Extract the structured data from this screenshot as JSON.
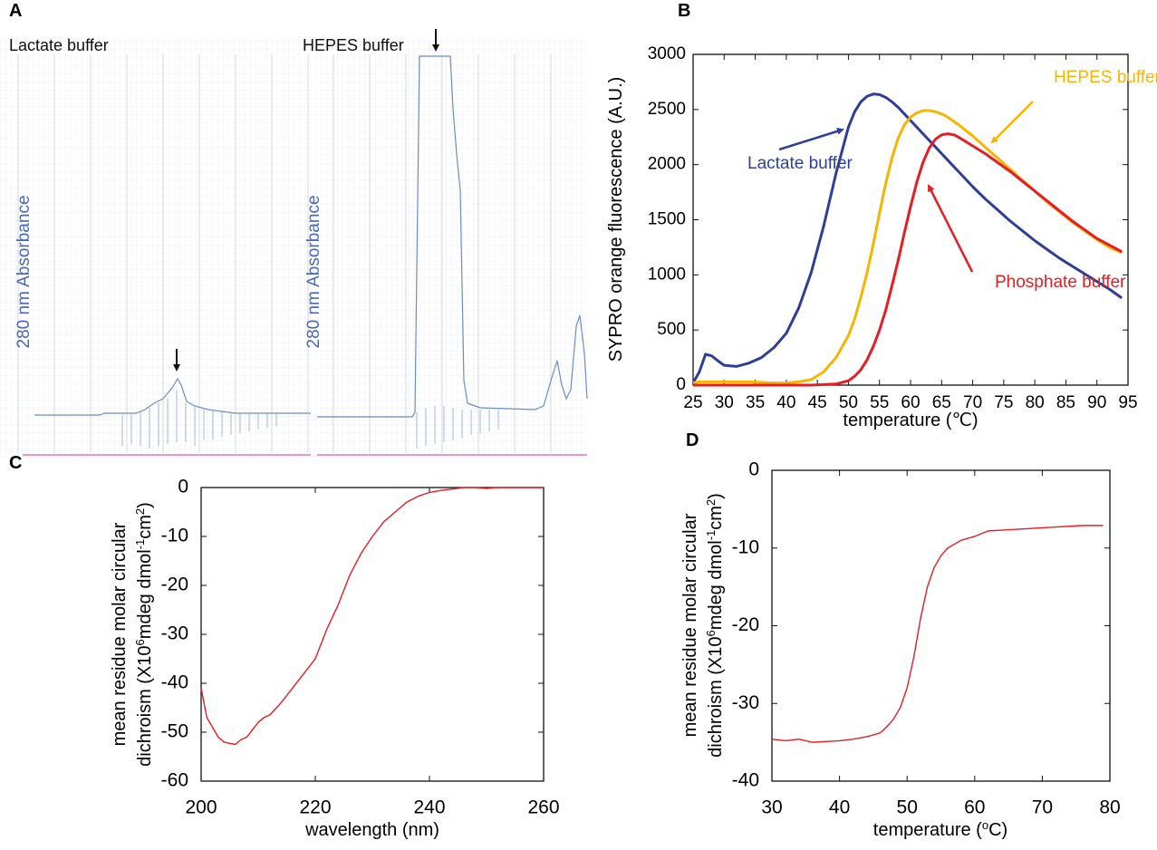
{
  "panel_a": {
    "label": "A",
    "left_title": "Lactate buffer",
    "right_title": "HEPES buffer",
    "left_y_label": "280 nm Absorbance",
    "right_y_label": "280 nm Absorbance"
  },
  "chart_data": [
    {
      "type": "line",
      "label": "B",
      "y_label": "SYPRO orange fluorescence (A.U.)",
      "x_label": "temperature (℃)",
      "xlim": [
        25,
        95
      ],
      "xticks": [
        25,
        30,
        35,
        40,
        45,
        50,
        55,
        60,
        65,
        70,
        75,
        80,
        85,
        90,
        95
      ],
      "ylim": [
        0,
        3000
      ],
      "yticks": [
        0,
        500,
        1000,
        1500,
        2000,
        2500,
        3000
      ],
      "x": [
        25,
        26,
        27,
        28,
        29,
        30,
        32,
        34,
        36,
        38,
        40,
        42,
        44,
        46,
        48,
        50,
        51,
        52,
        53,
        54,
        55,
        56,
        57,
        58,
        59,
        60,
        61,
        62,
        63,
        64,
        65,
        66,
        67,
        68,
        70,
        72,
        74,
        76,
        78,
        80,
        82,
        84,
        86,
        88,
        90,
        92,
        94
      ],
      "series": [
        {
          "name": "Lactate buffer",
          "color": "#2e3f98",
          "values": [
            20,
            120,
            280,
            265,
            220,
            180,
            170,
            200,
            250,
            340,
            470,
            700,
            1020,
            1440,
            1920,
            2340,
            2480,
            2570,
            2620,
            2640,
            2635,
            2610,
            2570,
            2520,
            2460,
            2400,
            2340,
            2280,
            2220,
            2160,
            2100,
            2040,
            1980,
            1920,
            1800,
            1690,
            1590,
            1490,
            1400,
            1310,
            1230,
            1150,
            1080,
            1010,
            940,
            870,
            790
          ]
        },
        {
          "name": "HEPES buffer",
          "color": "#f7b500",
          "values": [
            20,
            30,
            30,
            30,
            30,
            30,
            30,
            30,
            25,
            20,
            20,
            30,
            50,
            120,
            250,
            450,
            600,
            800,
            1020,
            1280,
            1560,
            1830,
            2060,
            2240,
            2360,
            2430,
            2470,
            2490,
            2490,
            2480,
            2460,
            2430,
            2390,
            2350,
            2260,
            2160,
            2060,
            1960,
            1860,
            1760,
            1660,
            1570,
            1480,
            1400,
            1320,
            1250,
            1200
          ]
        },
        {
          "name": "Phosphate buffer",
          "color": "#e31e24",
          "values": [
            0,
            0,
            0,
            0,
            0,
            0,
            0,
            0,
            0,
            0,
            0,
            0,
            0,
            5,
            10,
            40,
            80,
            140,
            230,
            350,
            500,
            680,
            900,
            1130,
            1380,
            1620,
            1840,
            2020,
            2150,
            2230,
            2270,
            2280,
            2270,
            2240,
            2170,
            2100,
            2020,
            1940,
            1850,
            1760,
            1670,
            1580,
            1490,
            1410,
            1330,
            1270,
            1210
          ]
        }
      ]
    },
    {
      "type": "line",
      "label": "C",
      "y_label_line1": "mean residue molar circular",
      "y_label_parts": [
        "dichroism (X10",
        "6",
        "mdeg dmol",
        "-1",
        "cm",
        "2",
        ")"
      ],
      "x_label": "wavelength (nm)",
      "xlim": [
        200,
        260
      ],
      "xticks": [
        200,
        220,
        240,
        260
      ],
      "ylim": [
        -60,
        0
      ],
      "yticks": [
        -60,
        -50,
        -40,
        -30,
        -20,
        -10,
        0
      ],
      "x": [
        200,
        201,
        202,
        203,
        204,
        205,
        206,
        207,
        208,
        209,
        210,
        211,
        212,
        214,
        216,
        218,
        220,
        222,
        224,
        226,
        228,
        230,
        232,
        234,
        236,
        238,
        240,
        242,
        244,
        246,
        248,
        250,
        252,
        254,
        256,
        258,
        260
      ],
      "series": [
        {
          "color": "#e31e24",
          "values": [
            -41,
            -47,
            -49,
            -51,
            -52,
            -52.3,
            -52.5,
            -51.5,
            -51,
            -49.5,
            -48,
            -47,
            -46.5,
            -44,
            -41,
            -38,
            -35,
            -29,
            -24,
            -18,
            -13.5,
            -10,
            -7,
            -5,
            -3,
            -1.8,
            -1,
            -0.6,
            -0.3,
            0,
            0,
            -0.2,
            0,
            0,
            0,
            0,
            0
          ]
        }
      ]
    },
    {
      "type": "line",
      "label": "D",
      "y_label_line1": "mean residue molar circular",
      "y_label_parts": [
        "dichroism (X10",
        "6",
        "mdeg dmol",
        "-1",
        "cm",
        "2",
        ")"
      ],
      "x_label_parts": [
        "temperature (",
        "o",
        "C)"
      ],
      "xlim": [
        30,
        80
      ],
      "xticks": [
        30,
        40,
        50,
        60,
        70,
        80
      ],
      "ylim": [
        -40,
        0
      ],
      "yticks": [
        -40,
        -30,
        -20,
        -10,
        0
      ],
      "x": [
        30,
        32,
        34,
        36,
        38,
        40,
        42,
        44,
        46,
        47,
        48,
        49,
        50,
        51,
        52,
        53,
        54,
        55,
        56,
        58,
        60,
        62,
        64,
        66,
        68,
        70,
        72,
        74,
        76,
        78,
        79
      ],
      "series": [
        {
          "color": "#e31e24",
          "values": [
            -34.6,
            -34.8,
            -34.6,
            -35,
            -34.9,
            -34.8,
            -34.6,
            -34.3,
            -33.8,
            -33,
            -32,
            -30.5,
            -28,
            -24,
            -19,
            -15,
            -12.5,
            -11,
            -10,
            -9,
            -8.5,
            -7.8,
            -7.7,
            -7.6,
            -7.5,
            -7.4,
            -7.3,
            -7.2,
            -7.1,
            -7.1,
            -7.1
          ]
        }
      ]
    }
  ]
}
